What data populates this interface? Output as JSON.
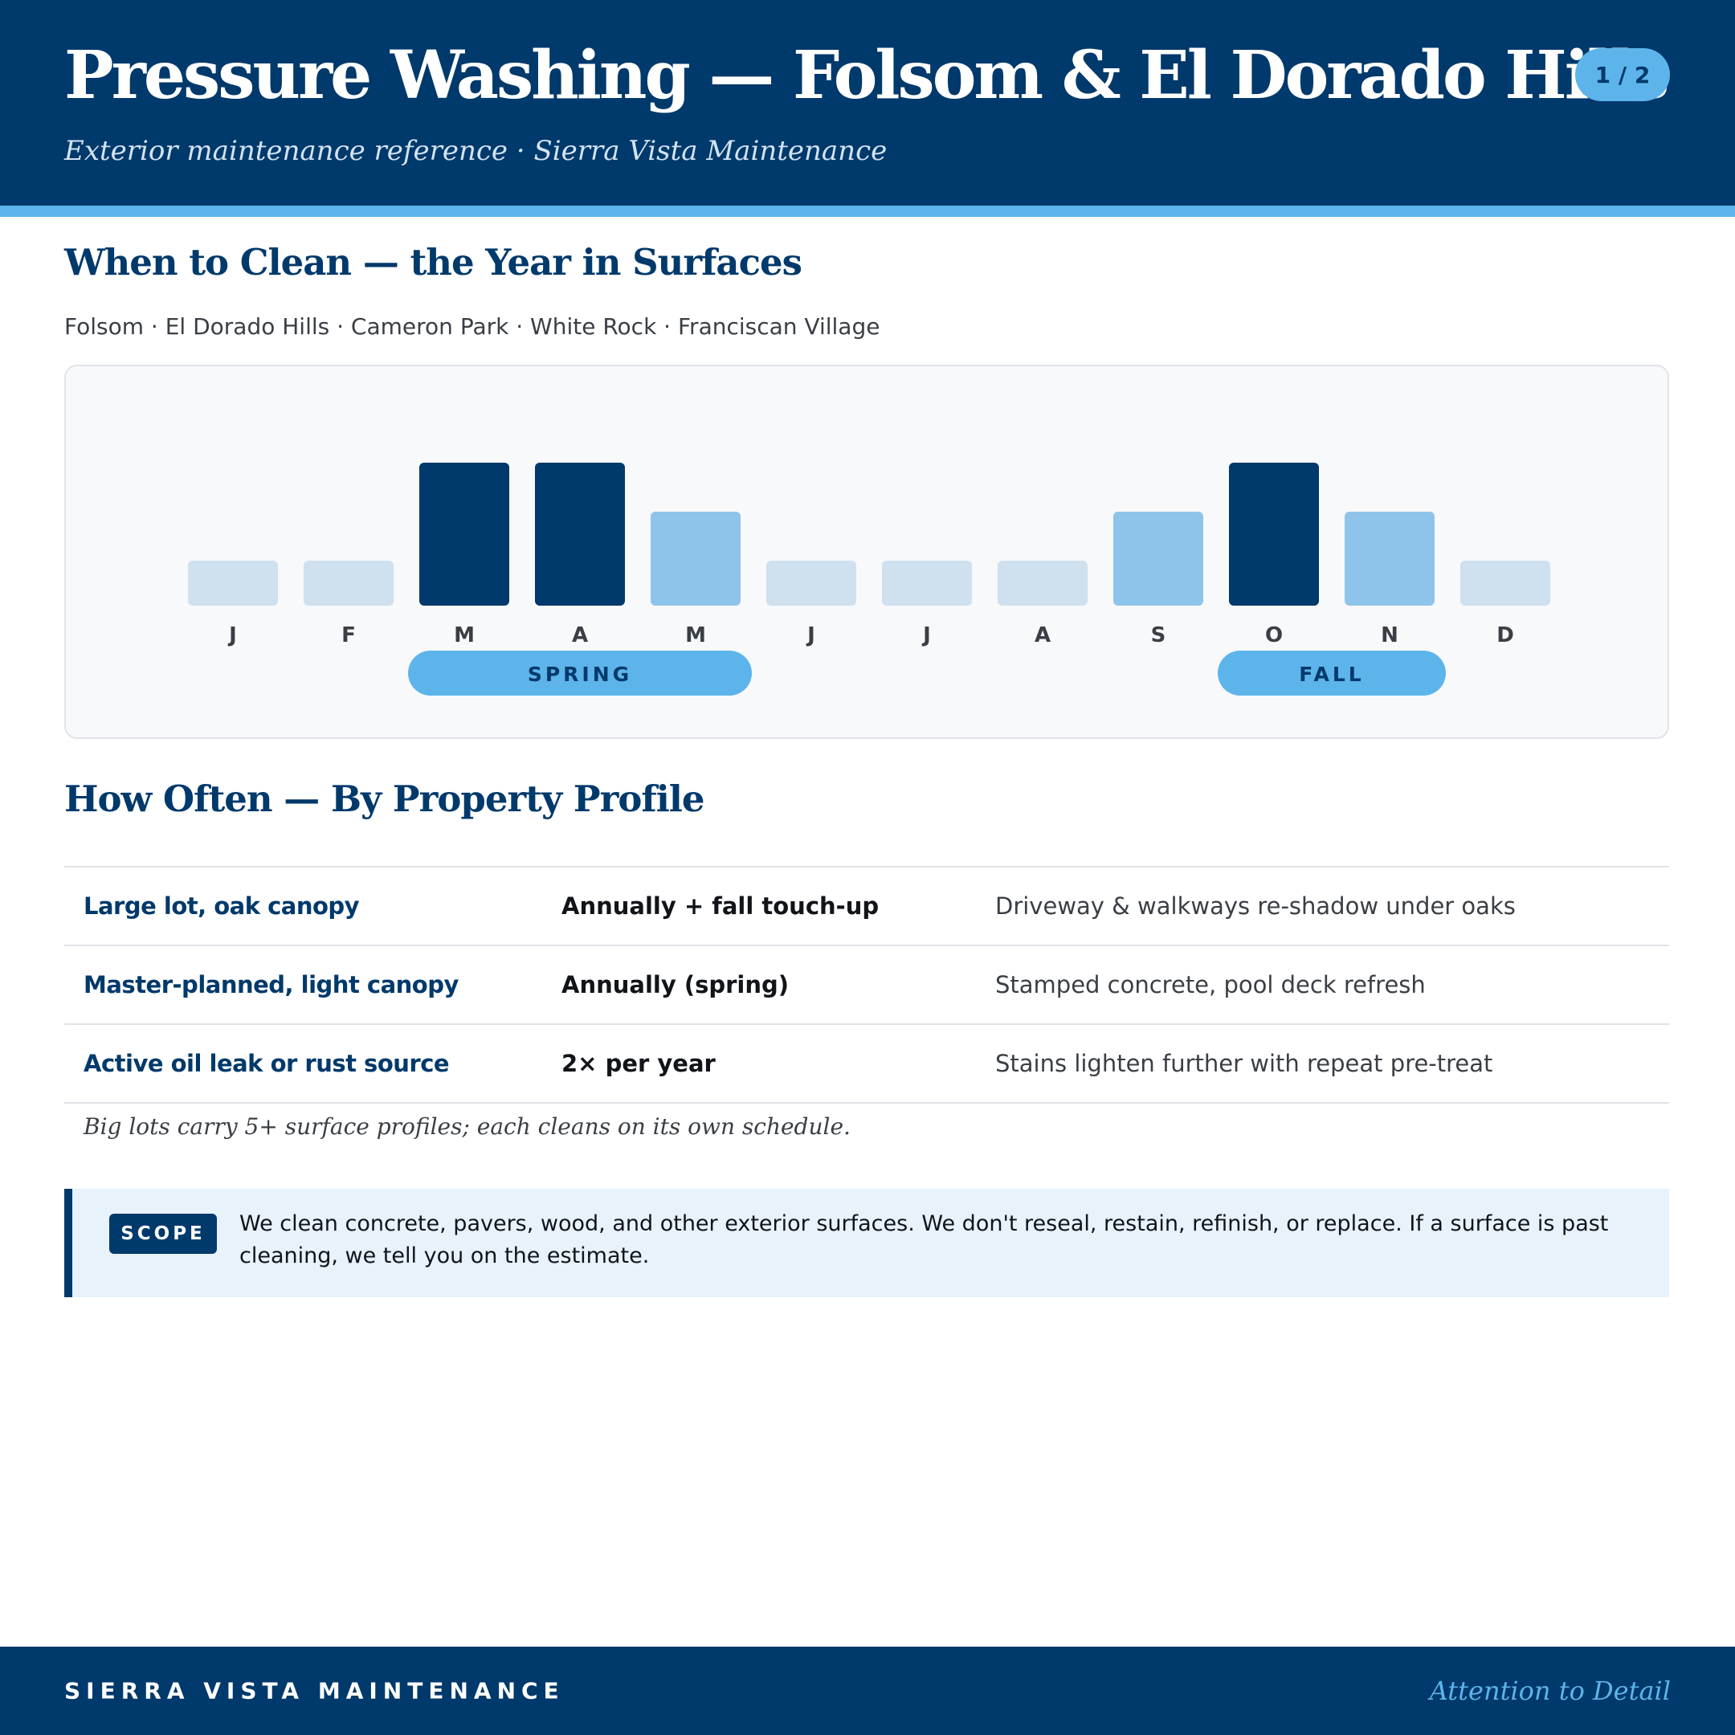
{
  "header": {
    "title": "Pressure Washing — Folsom & El Dorado Hills",
    "page_indicator": "1 / 2",
    "subtitle": "Exterior maintenance reference · Sierra Vista Maintenance"
  },
  "when_section": {
    "title": "When to Clean — the Year in Surfaces",
    "areas": "Folsom · El Dorado Hills · Cameron Park · White Rock · Franciscan Village"
  },
  "chart_data": {
    "type": "bar",
    "categories": [
      "J",
      "F",
      "M",
      "A",
      "M",
      "J",
      "J",
      "A",
      "S",
      "O",
      "N",
      "D"
    ],
    "values": [
      1,
      1,
      3,
      3,
      2,
      1,
      1,
      1,
      2,
      3,
      2,
      1
    ],
    "levels": [
      "low",
      "low",
      "peak",
      "peak",
      "mid",
      "low",
      "low",
      "low",
      "mid",
      "peak",
      "mid",
      "low"
    ],
    "level_colors": {
      "low": "#cfe0ee",
      "mid": "#8fc4ea",
      "peak": "#00396b"
    },
    "seasons": [
      {
        "label": "SPRING",
        "start": 2,
        "end": 4
      },
      {
        "label": "FALL",
        "start": 9,
        "end": 10
      }
    ],
    "title": "",
    "xlabel": "",
    "ylabel": "",
    "grid": false
  },
  "frequency_section": {
    "title": "How Often — By Property Profile",
    "rows": [
      {
        "profile": "Large lot, oak canopy",
        "frequency": "Annually + fall touch-up",
        "note": "Driveway & walkways re-shadow under oaks"
      },
      {
        "profile": "Master-planned, light canopy",
        "frequency": "Annually (spring)",
        "note": "Stamped concrete, pool deck refresh"
      },
      {
        "profile": "Active oil leak or rust source",
        "frequency": "2× per year",
        "note": "Stains lighten further with repeat pre-treat"
      }
    ],
    "footnote": "Big lots carry 5+ surface profiles; each cleans on its own schedule."
  },
  "scope": {
    "badge": "SCOPE",
    "text": "We clean concrete, pavers, wood, and other exterior surfaces. We don't reseal, restain, refinish, or replace. If a surface is past cleaning, we tell you on the estimate."
  },
  "footer": {
    "brand": "SIERRA VISTA MAINTENANCE",
    "tagline": "Attention to Detail"
  },
  "colors": {
    "navy": "#00396b",
    "sky": "#5db4ea",
    "panel": "#e7f2fb"
  }
}
